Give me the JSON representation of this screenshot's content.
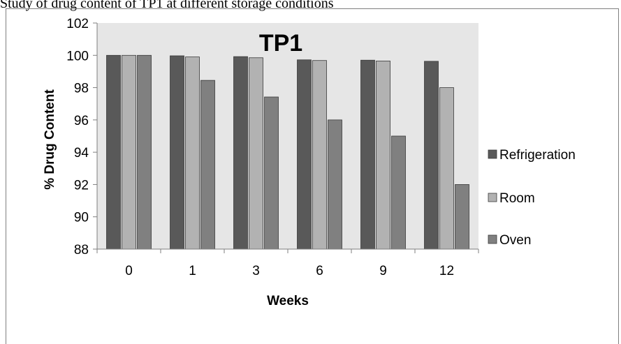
{
  "page": {
    "top_text": "Study of drug content of TP1 at different storage conditions"
  },
  "chart_data": {
    "type": "bar",
    "title": "TP1",
    "xlabel": "Weeks",
    "ylabel": "% Drug Content",
    "categories": [
      "0",
      "1",
      "3",
      "6",
      "9",
      "12"
    ],
    "ylim": [
      88,
      102
    ],
    "yticks": [
      88,
      90,
      92,
      94,
      96,
      98,
      100,
      102
    ],
    "grid": false,
    "legend_position": "right",
    "series": [
      {
        "name": "Refrigeration",
        "color": "#595959",
        "values": [
          100.0,
          99.97,
          99.92,
          99.72,
          99.7,
          99.63
        ]
      },
      {
        "name": "Room",
        "color": "#b2b2b2",
        "values": [
          100.0,
          99.9,
          99.85,
          99.68,
          99.65,
          98.0
        ]
      },
      {
        "name": "Oven",
        "color": "#808080",
        "values": [
          100.0,
          98.45,
          97.42,
          96.0,
          95.0,
          92.0
        ]
      }
    ],
    "plot_background": "#e6e6e6"
  }
}
